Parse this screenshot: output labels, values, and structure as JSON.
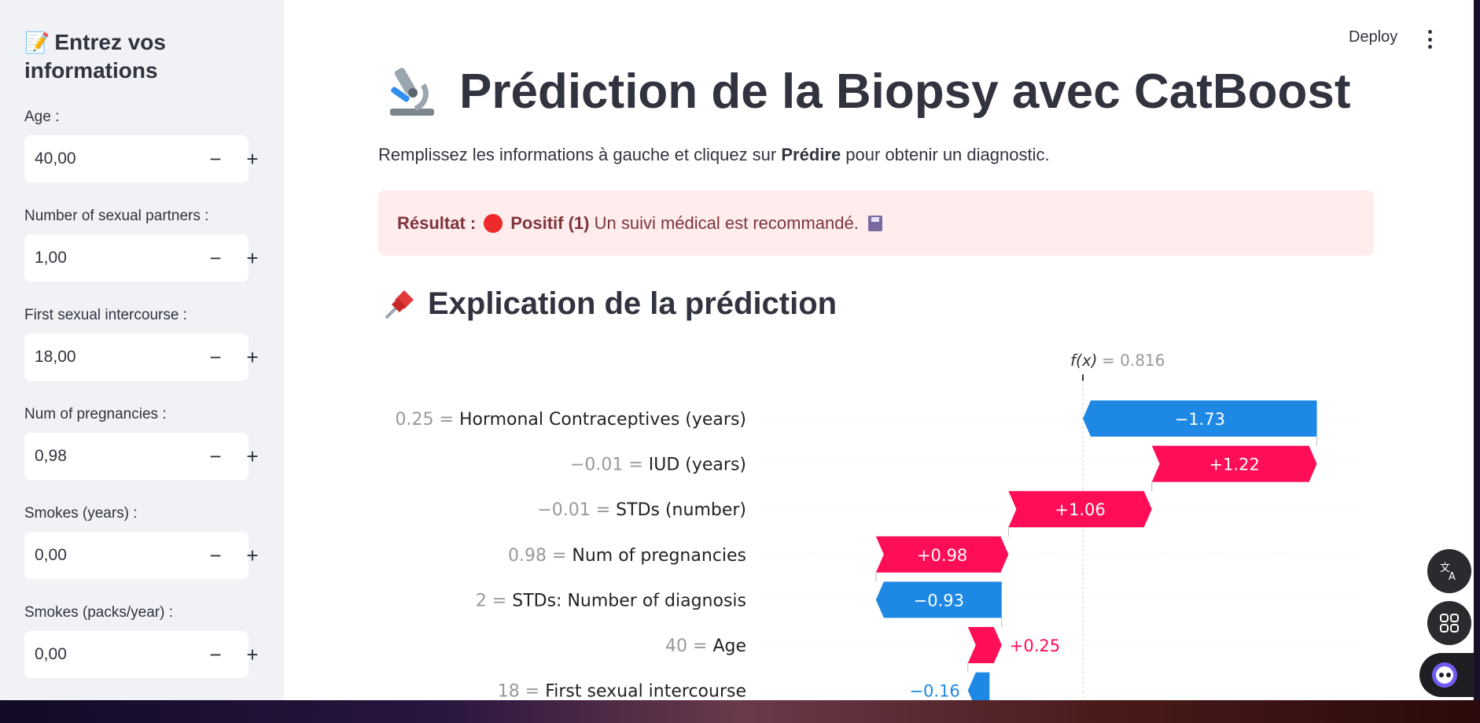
{
  "header": {
    "deploy_label": "Deploy"
  },
  "sidebar": {
    "title": "Entrez vos informations",
    "fields": [
      {
        "label": "Age :",
        "value": "40,00"
      },
      {
        "label": "Number of sexual partners :",
        "value": "1,00"
      },
      {
        "label": "First sexual intercourse :",
        "value": "18,00"
      },
      {
        "label": "Num of pregnancies :",
        "value": "0,98"
      },
      {
        "label": "Smokes (years) :",
        "value": "0,00"
      },
      {
        "label": "Smokes (packs/year) :",
        "value": "0,00"
      }
    ],
    "minus": "−",
    "plus": "+"
  },
  "main": {
    "title": "Prédiction de la Biopsy avec CatBoost",
    "intro_prefix": "Remplissez les informations à gauche et cliquez sur ",
    "intro_bold": "Prédire",
    "intro_suffix": " pour obtenir un diagnostic.",
    "result": {
      "label": "Résultat :",
      "status": "Positif (1)",
      "message": "Un suivi médical est recommandé."
    },
    "section_title": "Explication de la prédiction"
  },
  "colors": {
    "positive": "#ff0d57",
    "negative": "#1e88e5",
    "result_bg": "#ffecec",
    "result_text": "#7d353b"
  },
  "chart_data": {
    "type": "waterfall",
    "fx_label": "f(x)",
    "fx_value": "= 0.816",
    "fx": 0.816,
    "rows": [
      {
        "feature_value": "0.25",
        "feature": "Hormonal Contraceptives (years)",
        "shap": -1.73,
        "label": "−1.73"
      },
      {
        "feature_value": "−0.01",
        "feature": "IUD (years)",
        "shap": 1.22,
        "label": "+1.22"
      },
      {
        "feature_value": "−0.01",
        "feature": "STDs (number)",
        "shap": 1.06,
        "label": "+1.06"
      },
      {
        "feature_value": "0.98",
        "feature": "Num of pregnancies",
        "shap": 0.98,
        "label": "+0.98"
      },
      {
        "feature_value": "2",
        "feature": "STDs: Number of diagnosis",
        "shap": -0.93,
        "label": "−0.93"
      },
      {
        "feature_value": "40",
        "feature": "Age",
        "shap": 0.25,
        "label": "+0.25"
      },
      {
        "feature_value": "18",
        "feature": "First sexual intercourse",
        "shap": -0.16,
        "label": "−0.16"
      }
    ]
  }
}
